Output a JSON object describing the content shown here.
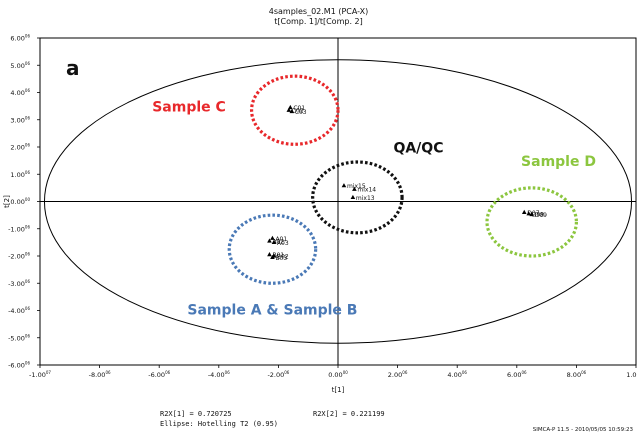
{
  "figure": {
    "title_line1": "4samples_02.M1 (PCA-X)",
    "title_line2": "t[Comp. 1]/t[Comp. 2]",
    "panel_letter": "a",
    "footer_rzx1": "R2X[1] = 0.720725",
    "footer_rzx2": "R2X[2] = 0.221199",
    "footer_ellipse": "Ellipse: Hotelling T2 (0.95)",
    "software_stamp": "SIMCA-P 11.5 - 2010/05/05 10:59:23"
  },
  "chart_data": {
    "type": "scatter",
    "xlabel": "t[1]",
    "ylabel": "t[2]",
    "xlim": [
      -1.0,
      1.0
    ],
    "ylim": [
      -0.06,
      0.06
    ],
    "x_ticks": [
      -1.0,
      -0.8,
      -0.6,
      -0.4,
      -0.2,
      0.0,
      0.2,
      0.4,
      0.6,
      0.8,
      1.0
    ],
    "x_tick_labels": [
      "-1.00",
      "-8.00",
      "-6.00",
      "-4.00",
      "-2.00",
      "0.00",
      "2.00",
      "4.00",
      "6.00",
      "8.00",
      "1.00"
    ],
    "x_tick_exps": [
      "07",
      "06",
      "06",
      "06",
      "06",
      "00",
      "06",
      "06",
      "06",
      "06",
      "07"
    ],
    "y_ticks": [
      -0.06,
      -0.05,
      -0.04,
      -0.03,
      -0.02,
      -0.01,
      0.0,
      0.01,
      0.02,
      0.03,
      0.04,
      0.05,
      0.06
    ],
    "y_tick_labels": [
      "-6.00",
      "-5.00",
      "-4.00",
      "-3.00",
      "-2.00",
      "-1.00",
      "0.00",
      "1.00",
      "2.00",
      "3.00",
      "4.00",
      "5.00",
      "6.00"
    ],
    "y_tick_exps": [
      "06",
      "06",
      "06",
      "06",
      "06",
      "06",
      "00",
      "06",
      "06",
      "06",
      "06",
      "06",
      "06"
    ],
    "hotelling_ellipse": {
      "cx": 0.0,
      "cy": 0.0,
      "rx": 0.985,
      "ry": 0.052
    },
    "points": [
      {
        "x": -0.16,
        "y": 0.0345,
        "label": "C01"
      },
      {
        "x": -0.165,
        "y": 0.0335,
        "label": "C02"
      },
      {
        "x": -0.155,
        "y": 0.033,
        "label": "C03"
      },
      {
        "x": -0.22,
        "y": -0.0135,
        "label": "A01"
      },
      {
        "x": -0.23,
        "y": -0.0145,
        "label": "A02"
      },
      {
        "x": -0.215,
        "y": -0.015,
        "label": "A03"
      },
      {
        "x": -0.23,
        "y": -0.0195,
        "label": "B01"
      },
      {
        "x": -0.215,
        "y": -0.02,
        "label": "B02"
      },
      {
        "x": -0.22,
        "y": -0.0205,
        "label": "B03"
      },
      {
        "x": 0.02,
        "y": 0.0058,
        "label": "mix15"
      },
      {
        "x": 0.055,
        "y": 0.0045,
        "label": "mix14"
      },
      {
        "x": 0.05,
        "y": 0.0015,
        "label": "mix13"
      },
      {
        "x": 0.625,
        "y": -0.004,
        "label": "D07"
      },
      {
        "x": 0.64,
        "y": -0.0045,
        "label": "D08"
      },
      {
        "x": 0.65,
        "y": -0.0048,
        "label": "D09"
      }
    ],
    "groups": [
      {
        "name": "Sample C",
        "cx": -0.145,
        "cy": 0.0335,
        "rx": 0.145,
        "ry": 0.0125,
        "color": "#e8282b",
        "text_anchor": [
          -0.5,
          0.033
        ]
      },
      {
        "name": "QA/QC",
        "cx": 0.065,
        "cy": 0.0015,
        "rx": 0.15,
        "ry": 0.013,
        "color": "#111111",
        "text_anchor": [
          0.27,
          0.018
        ]
      },
      {
        "name": "Sample D",
        "cx": 0.65,
        "cy": -0.0075,
        "rx": 0.15,
        "ry": 0.0125,
        "color": "#8cc63f",
        "text_anchor": [
          0.74,
          0.013
        ]
      },
      {
        "name": "Sample A & Sample B",
        "cx": -0.22,
        "cy": -0.0175,
        "rx": 0.145,
        "ry": 0.0125,
        "color": "#4a79b6",
        "text_anchor": [
          -0.22,
          -0.0415
        ]
      }
    ]
  }
}
